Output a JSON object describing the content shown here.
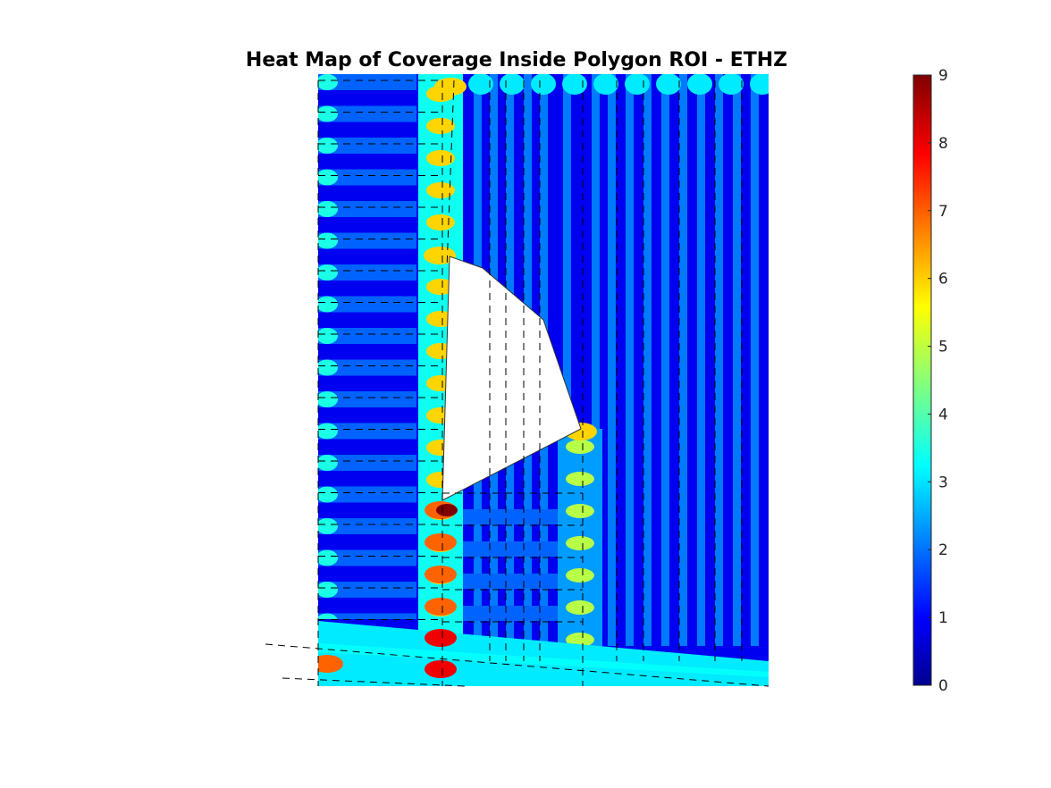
{
  "chart_data": {
    "type": "heatmap",
    "title": "Heat Map of Coverage Inside Polygon ROI - ETHZ",
    "xlabel": "",
    "ylabel": "",
    "colormap": "jet",
    "clim": [
      0,
      9
    ],
    "colorbar": {
      "location": "right",
      "ticks": [
        0,
        1,
        2,
        3,
        4,
        5,
        6,
        7,
        8,
        9
      ]
    },
    "regions": [
      {
        "name": "left-strip-horizontal-stripes",
        "pattern": "horizontal-stripes",
        "low": 1,
        "high": 3
      },
      {
        "name": "upper-right-vertical-stripes",
        "pattern": "vertical-stripes",
        "low": 1,
        "high": 2
      },
      {
        "name": "lower-middle-horizontal-stripes",
        "pattern": "horizontal-stripes",
        "low": 1,
        "high": 3
      },
      {
        "name": "bottom-band",
        "pattern": "band",
        "low": 2,
        "high": 3
      }
    ],
    "overlap_columns": [
      {
        "name": "column-left",
        "typical": 5,
        "peak": 7
      },
      {
        "name": "column-right",
        "typical": 4,
        "peak": 6
      }
    ],
    "max_hotspot_value": 9,
    "excluded_polygon": "white quadrilateral obstacle (no coverage)",
    "flight_paths": {
      "style": "dashed",
      "color": "#000000"
    }
  }
}
